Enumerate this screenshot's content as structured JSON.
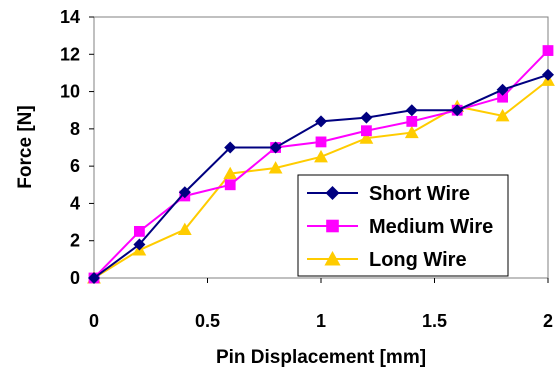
{
  "chart_data": {
    "type": "line",
    "title": "",
    "xlabel": "Pin Displacement [mm]",
    "ylabel": "Force [N]",
    "xlim": [
      0,
      2
    ],
    "ylim": [
      0,
      14
    ],
    "xticks": [
      0,
      0.5,
      1,
      1.5,
      2
    ],
    "xtick_labels": [
      "0",
      "0.5",
      "1",
      "1.5",
      "2"
    ],
    "yticks": [
      0,
      2,
      4,
      6,
      8,
      10,
      12,
      14
    ],
    "ytick_labels": [
      "0",
      "2",
      "4",
      "6",
      "8",
      "10",
      "12",
      "14"
    ],
    "grid": false,
    "legend_position": "bottom-right",
    "x": [
      0,
      0.2,
      0.4,
      0.6,
      0.8,
      1.0,
      1.2,
      1.4,
      1.6,
      1.8,
      2.0
    ],
    "series": [
      {
        "name": "Short Wire",
        "color": "#000080",
        "marker": "diamond",
        "values": [
          0,
          1.8,
          4.6,
          7.0,
          7.0,
          8.4,
          8.6,
          9.0,
          9.0,
          10.1,
          10.9
        ]
      },
      {
        "name": "Medium Wire",
        "color": "#ff00ff",
        "marker": "square",
        "values": [
          0,
          2.5,
          4.4,
          5.0,
          7.0,
          7.3,
          7.9,
          8.4,
          9.0,
          9.7,
          12.2
        ]
      },
      {
        "name": "Long Wire",
        "color": "#ffcc00",
        "marker": "triangle",
        "values": [
          0,
          1.5,
          2.6,
          5.6,
          5.9,
          6.5,
          7.5,
          7.8,
          9.2,
          8.7,
          10.6
        ]
      }
    ]
  }
}
